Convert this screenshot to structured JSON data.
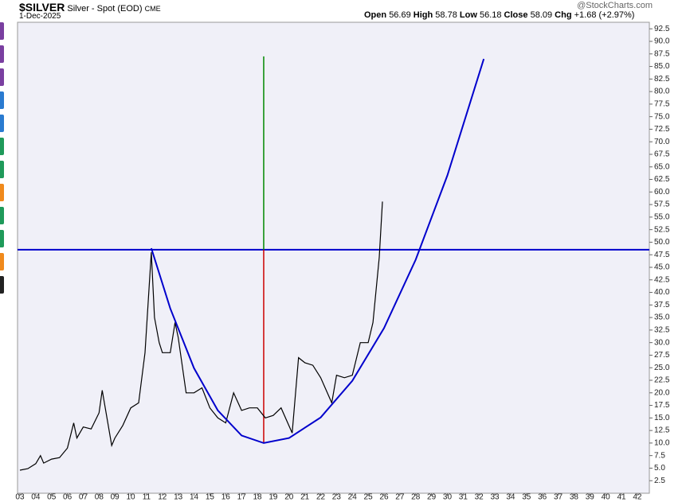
{
  "header": {
    "symbol": "$SILVER",
    "description": "Silver - Spot (EOD)",
    "exchange": "CME",
    "date": "1-Dec-2025",
    "open_label": "Open",
    "open": "56.69",
    "high_label": "High",
    "high": "58.78",
    "low_label": "Low",
    "low": "56.18",
    "close_label": "Close",
    "close": "58.09",
    "chg_label": "Chg",
    "chg": "+1.68 (+2.97%)",
    "brand": "@StockCharts.com"
  },
  "chart_data": {
    "type": "line",
    "x": [
      2003.0,
      2003.5,
      2004.0,
      2004.3,
      2004.5,
      2005.0,
      2005.5,
      2006.0,
      2006.4,
      2006.6,
      2007.0,
      2007.5,
      2008.0,
      2008.2,
      2008.8,
      2009.0,
      2009.5,
      2010.0,
      2010.5,
      2010.9,
      2011.3,
      2011.5,
      2011.8,
      2012.0,
      2012.5,
      2012.8,
      2013.0,
      2013.5,
      2014.0,
      2014.5,
      2015.0,
      2015.5,
      2016.0,
      2016.5,
      2017.0,
      2017.5,
      2018.0,
      2018.5,
      2019.0,
      2019.5,
      2020.2,
      2020.6,
      2021.0,
      2021.5,
      2022.0,
      2022.7,
      2023.0,
      2023.5,
      2024.0,
      2024.5,
      2025.0,
      2025.3,
      2025.7,
      2025.9
    ],
    "series": [
      {
        "color": "#000000",
        "values": [
          4.6,
          4.9,
          5.9,
          7.5,
          6.0,
          6.8,
          7.1,
          9.0,
          14.0,
          11.0,
          13.2,
          12.8,
          16.0,
          20.5,
          9.5,
          11.0,
          13.5,
          17.0,
          18.0,
          28.0,
          48.0,
          35.0,
          30.0,
          28.0,
          28.0,
          34.0,
          31.0,
          20.0,
          20.0,
          21.0,
          17.0,
          15.0,
          14.0,
          20.0,
          16.5,
          17.0,
          17.0,
          15.0,
          15.5,
          17.0,
          12.0,
          27.0,
          26.0,
          25.5,
          23.0,
          18.0,
          23.5,
          23.0,
          23.5,
          30.0,
          30.0,
          34.0,
          47.0,
          58.09
        ]
      }
    ],
    "curve": {
      "color": "#0000cc",
      "x": [
        2011.3,
        2012.5,
        2014.0,
        2015.5,
        2017.0,
        2018.4,
        2020.0,
        2022.0,
        2024.0,
        2026.0,
        2028.0,
        2030.0,
        2032.3
      ],
      "y": [
        48.8,
        36.8,
        24.9,
        16.5,
        11.5,
        10.0,
        11.0,
        15.1,
        22.4,
        32.9,
        46.5,
        63.3,
        86.5
      ]
    },
    "hline": {
      "y": 48.5,
      "color": "#0000cc"
    },
    "vlines": [
      {
        "x": 2018.4,
        "y": [
          10.0,
          48.5
        ],
        "color": "#cc0000"
      },
      {
        "x": 2018.4,
        "y": [
          48.5,
          87.0
        ],
        "color": "#008800"
      }
    ],
    "xlim": [
      2002.85,
      2042.76
    ],
    "ylim": [
      0,
      93.8
    ],
    "xticks": [
      {
        "value": 2003,
        "label": "03"
      },
      {
        "value": 2004,
        "label": "04"
      },
      {
        "value": 2005,
        "label": "05"
      },
      {
        "value": 2006,
        "label": "06"
      },
      {
        "value": 2007,
        "label": "07"
      },
      {
        "value": 2008,
        "label": "08"
      },
      {
        "value": 2009,
        "label": "09"
      },
      {
        "value": 2010,
        "label": "10"
      },
      {
        "value": 2011,
        "label": "11"
      },
      {
        "value": 2012,
        "label": "12"
      },
      {
        "value": 2013,
        "label": "13"
      },
      {
        "value": 2014,
        "label": "14"
      },
      {
        "value": 2015,
        "label": "15"
      },
      {
        "value": 2016,
        "label": "16"
      },
      {
        "value": 2017,
        "label": "17"
      },
      {
        "value": 2018,
        "label": "18"
      },
      {
        "value": 2019,
        "label": "19"
      },
      {
        "value": 2020,
        "label": "20"
      },
      {
        "value": 2021,
        "label": "21"
      },
      {
        "value": 2022,
        "label": "22"
      },
      {
        "value": 2023,
        "label": "23"
      },
      {
        "value": 2024,
        "label": "24"
      },
      {
        "value": 2025,
        "label": "25"
      },
      {
        "value": 2026,
        "label": "26"
      },
      {
        "value": 2027,
        "label": "27"
      },
      {
        "value": 2028,
        "label": "28"
      },
      {
        "value": 2029,
        "label": "29"
      },
      {
        "value": 2030,
        "label": "30"
      },
      {
        "value": 2031,
        "label": "31"
      },
      {
        "value": 2032,
        "label": "32"
      },
      {
        "value": 2033,
        "label": "33"
      },
      {
        "value": 2034,
        "label": "34"
      },
      {
        "value": 2035,
        "label": "35"
      },
      {
        "value": 2036,
        "label": "36"
      },
      {
        "value": 2037,
        "label": "37"
      },
      {
        "value": 2038,
        "label": "38"
      },
      {
        "value": 2039,
        "label": "39"
      },
      {
        "value": 2040,
        "label": "40"
      },
      {
        "value": 2041,
        "label": "41"
      },
      {
        "value": 2042,
        "label": "42"
      }
    ],
    "yticks": [
      2.5,
      {
        "value": 5,
        "label": "5.0"
      },
      7.5,
      {
        "value": 10,
        "label": "10.0"
      },
      12.5,
      {
        "value": 15,
        "label": "15.0"
      },
      17.5,
      {
        "value": 20,
        "label": "20.0"
      },
      22.5,
      {
        "value": 25,
        "label": "25.0"
      },
      27.5,
      {
        "value": 30,
        "label": "30.0"
      },
      32.5,
      {
        "value": 35,
        "label": "35.0"
      },
      37.5,
      {
        "value": 40,
        "label": "40.0"
      },
      42.5,
      {
        "value": 45,
        "label": "45.0"
      },
      47.5,
      {
        "value": 50,
        "label": "50.0"
      },
      52.5,
      {
        "value": 55,
        "label": "55.0"
      },
      57.5,
      {
        "value": 60,
        "label": "60.0"
      },
      62.5,
      {
        "value": 65,
        "label": "65.0"
      },
      67.5,
      {
        "value": 70,
        "label": "70.0"
      },
      72.5,
      {
        "value": 75,
        "label": "75.0"
      },
      77.5,
      {
        "value": 80,
        "label": "80.0"
      },
      82.5,
      {
        "value": 85,
        "label": "85.0"
      },
      87.5,
      {
        "value": 90,
        "label": "90.0"
      },
      92.5
    ]
  }
}
